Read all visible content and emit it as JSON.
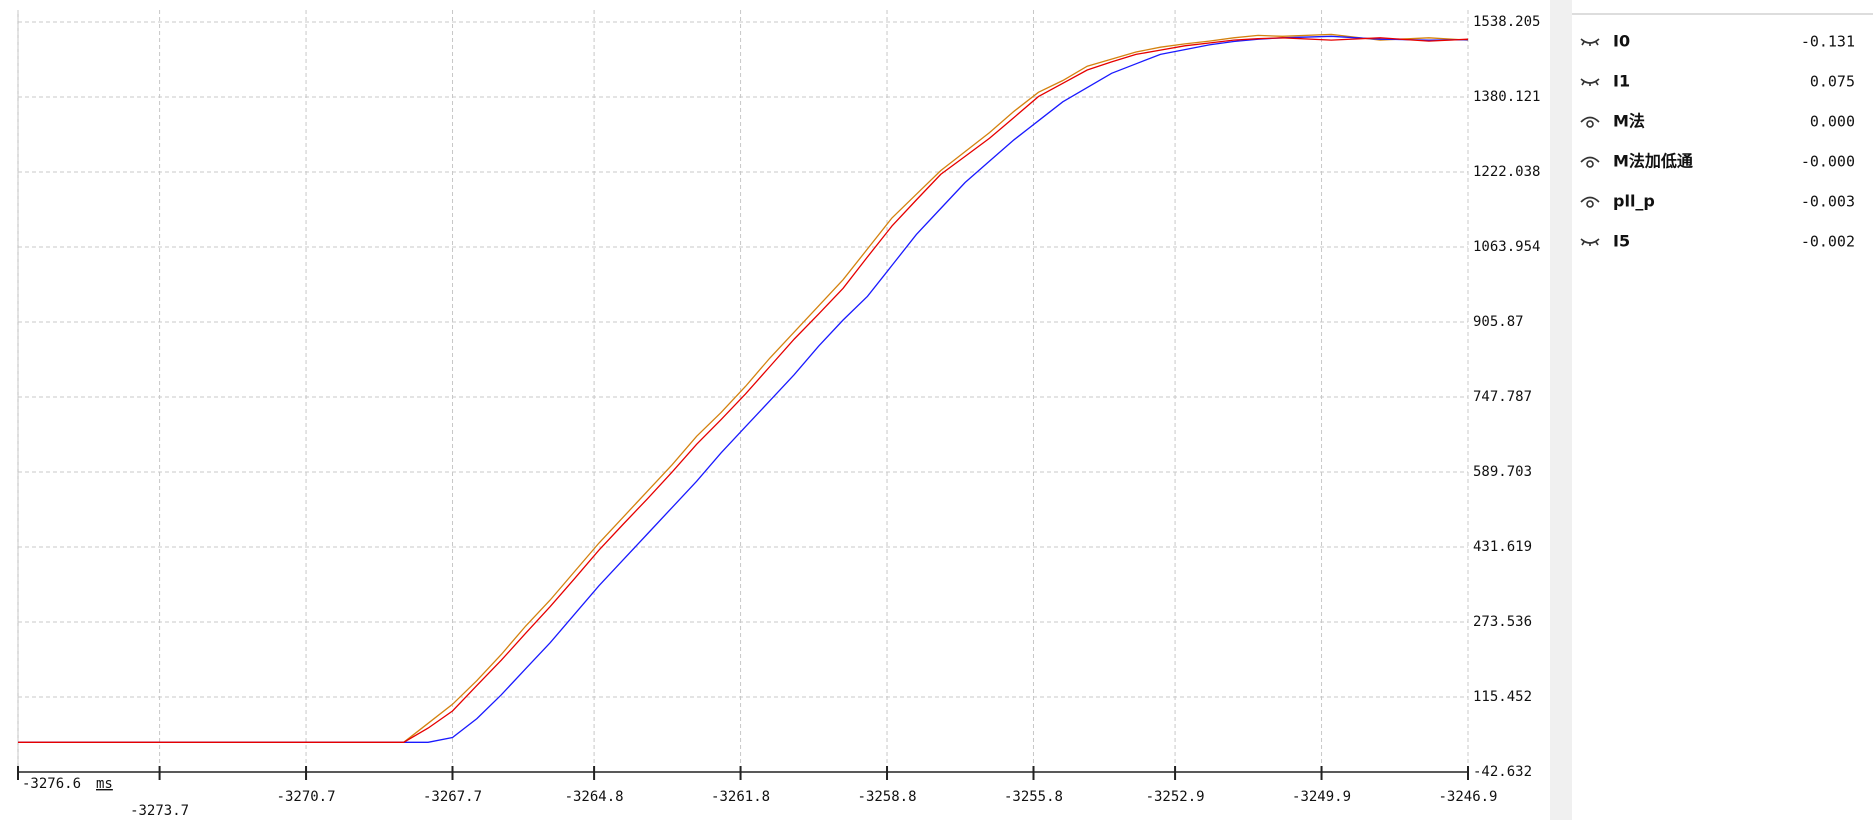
{
  "chart_data": {
    "type": "line",
    "x_label": "ms",
    "x": [
      -3276.6,
      -3268.7,
      -3268.2,
      -3267.7,
      -3267.2,
      -3266.7,
      -3266.2,
      -3265.7,
      -3265.2,
      -3264.7,
      -3264.2,
      -3263.7,
      -3263.2,
      -3262.7,
      -3262.2,
      -3261.7,
      -3261.2,
      -3260.7,
      -3260.2,
      -3259.7,
      -3259.2,
      -3258.7,
      -3258.2,
      -3257.7,
      -3257.2,
      -3256.7,
      -3256.2,
      -3255.7,
      -3255.2,
      -3254.7,
      -3254.2,
      -3253.7,
      -3253.2,
      -3252.7,
      -3252.2,
      -3251.7,
      -3251.2,
      -3250.7,
      -3249.7,
      -3248.7,
      -3247.7,
      -3246.9
    ],
    "series": [
      {
        "name": "M法",
        "color": "#d4820f",
        "values": [
          20,
          20,
          60,
          100,
          150,
          205,
          265,
          320,
          380,
          440,
          495,
          550,
          605,
          665,
          715,
          770,
          830,
          885,
          940,
          995,
          1060,
          1125,
          1175,
          1225,
          1265,
          1305,
          1350,
          1390,
          1415,
          1445,
          1460,
          1475,
          1485,
          1492,
          1498,
          1505,
          1510,
          1508,
          1512,
          1500,
          1505,
          1500
        ]
      },
      {
        "name": "M法加低通",
        "color": "#1a1aff",
        "values": [
          20,
          20,
          20,
          30,
          70,
          120,
          175,
          230,
          290,
          350,
          405,
          460,
          515,
          570,
          630,
          685,
          740,
          795,
          855,
          910,
          960,
          1025,
          1090,
          1145,
          1200,
          1245,
          1290,
          1330,
          1370,
          1400,
          1430,
          1450,
          1470,
          1480,
          1490,
          1497,
          1502,
          1505,
          1508,
          1502,
          1500,
          1501
        ]
      },
      {
        "name": "pll_p",
        "color": "#e60000",
        "values": [
          20,
          20,
          50,
          86,
          140,
          193,
          250,
          306,
          365,
          425,
          480,
          534,
          590,
          648,
          700,
          754,
          812,
          870,
          923,
          977,
          1043,
          1108,
          1163,
          1217,
          1255,
          1293,
          1337,
          1381,
          1409,
          1437,
          1454,
          1470,
          1479,
          1488,
          1494,
          1500,
          1503,
          1505,
          1500,
          1505,
          1498,
          1502
        ]
      }
    ],
    "xlim": [
      -3276.6,
      -3246.9
    ],
    "xticks": [
      -3276.6,
      -3273.7,
      -3270.7,
      -3267.7,
      -3264.8,
      -3261.8,
      -3258.8,
      -3255.8,
      -3252.9,
      -3249.9,
      -3246.9
    ],
    "ylim": [
      -42.632,
      1538.205
    ],
    "yticks": [
      -42.632,
      115.452,
      273.536,
      431.619,
      589.703,
      747.787,
      905.87,
      1063.954,
      1222.038,
      1380.121,
      1538.205
    ],
    "grid": true
  },
  "channels": [
    {
      "name": "I0",
      "color": "#3a8ee6",
      "readout": "-0.131",
      "visible": false
    },
    {
      "name": "I1",
      "color": "#e0197d",
      "readout": "0.075",
      "visible": false
    },
    {
      "name": "M法",
      "color": "#c8860a",
      "readout": "0.000",
      "visible": true
    },
    {
      "name": "M法加低通",
      "color": "#1010ee",
      "readout": "-0.000",
      "visible": true
    },
    {
      "name": "pll_p",
      "color": "#e00000",
      "readout": "-0.003",
      "visible": true
    },
    {
      "name": "I5",
      "color": "#4caf00",
      "readout": "-0.002",
      "visible": false
    }
  ]
}
